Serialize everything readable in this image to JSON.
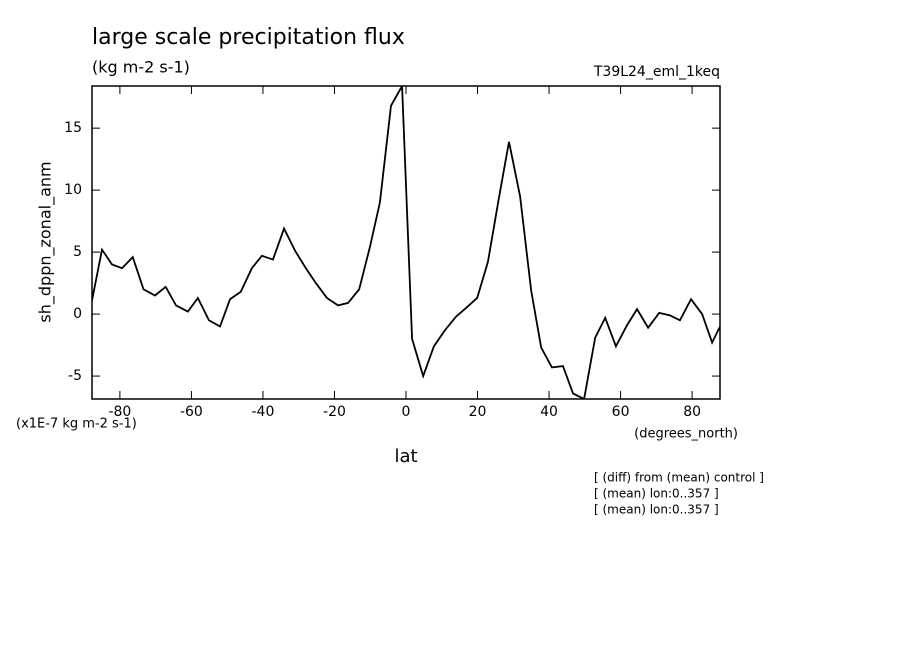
{
  "chart_data": {
    "type": "line",
    "title": "large scale precipitation flux",
    "subtitle": "(kg m-2 s-1)",
    "dataset": "T39L24_eml_1keq",
    "ylabel": "sh_dppn_zonal_anm",
    "y_units": "(x1E-7 kg m-2 s-1)",
    "xlabel": "lat",
    "x_units": "(degrees_north)",
    "notes": [
      "[ (diff) from (mean) control ]",
      "[ (mean) lon:0..357 ]",
      "[ (mean) lon:0..357 ]"
    ],
    "color": "#000000",
    "xlim": [
      -87.8,
      87.8
    ],
    "ylim": [
      -6.85,
      18.4
    ],
    "xticks": [
      -80,
      -60,
      -40,
      -20,
      0,
      20,
      40,
      60,
      80
    ],
    "yticks": [
      -5,
      0,
      5,
      10,
      15
    ],
    "x": [
      -87.8,
      -85,
      -82.2,
      -79.4,
      -76.4,
      -73.4,
      -70.2,
      -67.2,
      -64.3,
      -61,
      -58.2,
      -55.1,
      -52,
      -49.2,
      -46.2,
      -43.1,
      -40.3,
      -37.2,
      -34.1,
      -31,
      -28,
      -25.2,
      -22.1,
      -19,
      -16.2,
      -13.1,
      -10.1,
      -7.3,
      -4.2,
      -1.1,
      1.7,
      4.8,
      7.8,
      10.9,
      14,
      16.8,
      19.9,
      22.9,
      26,
      28.8,
      31.9,
      35,
      37.8,
      40.8,
      43.9,
      46.7,
      49.8,
      52.9,
      55.7,
      58.7,
      61.8,
      64.6,
      67.7,
      70.8,
      73.8,
      76.6,
      79.7,
      82.8,
      85.6,
      87.8
    ],
    "values": [
      1.1,
      5.2,
      4.0,
      3.7,
      4.6,
      2.0,
      1.5,
      2.2,
      0.7,
      0.2,
      1.3,
      -0.5,
      -1.0,
      1.2,
      1.8,
      3.7,
      4.7,
      4.4,
      6.9,
      5.1,
      3.7,
      2.5,
      1.3,
      0.7,
      0.9,
      2.0,
      5.4,
      9.0,
      16.8,
      18.4,
      -2.0,
      -5.0,
      -2.6,
      -1.3,
      -0.2,
      0.5,
      1.3,
      4.2,
      9.4,
      13.9,
      9.5,
      1.9,
      -2.7,
      -4.3,
      -4.2,
      -6.4,
      -6.85,
      -1.9,
      -0.3,
      -2.6,
      -0.9,
      0.4,
      -1.1,
      0.1,
      -0.1,
      -0.5,
      1.2,
      0.0,
      -2.3,
      -1.0
    ]
  }
}
